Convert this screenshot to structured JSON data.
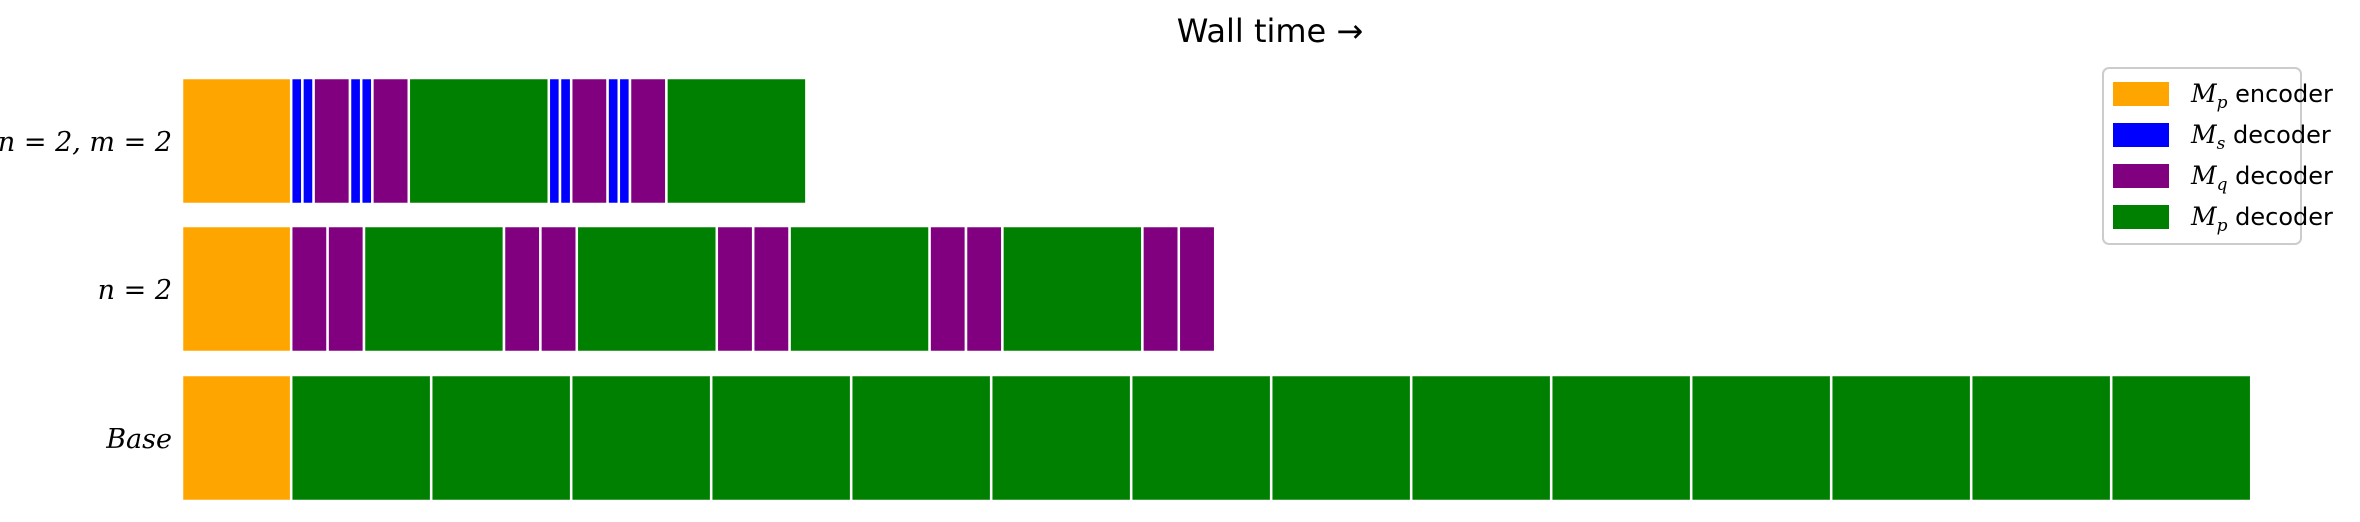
{
  "chart_data": {
    "type": "bar",
    "orientation": "horizontal-timeline",
    "title": "Wall time →",
    "xlabel": "",
    "ylabel": "",
    "x_unit": "blocks (one M_p decoder step = 1)",
    "xlim": [
      0,
      15.6
    ],
    "grid": false,
    "legend_position": "top-right",
    "colors": {
      "encoder": "#ffa500",
      "ms_decoder": "#0000ff",
      "mq_decoder": "#800080",
      "mp_decoder": "#008000"
    },
    "legend": [
      {
        "key": "encoder",
        "symbol": "M",
        "sub": "p",
        "text": "encoder"
      },
      {
        "key": "ms_decoder",
        "symbol": "M",
        "sub": "s",
        "text": "decoder"
      },
      {
        "key": "mq_decoder",
        "symbol": "M",
        "sub": "q",
        "text": "decoder"
      },
      {
        "key": "mp_decoder",
        "symbol": "M",
        "sub": "p",
        "text": "decoder"
      }
    ],
    "rows": [
      {
        "label": "n = 2, m = 2",
        "segments": [
          {
            "type": "encoder",
            "start": 0.0,
            "duration": 0.78
          },
          {
            "type": "ms_decoder",
            "start": 0.78,
            "duration": 0.08
          },
          {
            "type": "ms_decoder",
            "start": 0.86,
            "duration": 0.08
          },
          {
            "type": "mq_decoder",
            "start": 0.94,
            "duration": 0.26
          },
          {
            "type": "ms_decoder",
            "start": 1.2,
            "duration": 0.08
          },
          {
            "type": "ms_decoder",
            "start": 1.28,
            "duration": 0.08
          },
          {
            "type": "mq_decoder",
            "start": 1.36,
            "duration": 0.26
          },
          {
            "type": "mp_decoder",
            "start": 1.62,
            "duration": 1.0
          },
          {
            "type": "ms_decoder",
            "start": 2.62,
            "duration": 0.08
          },
          {
            "type": "ms_decoder",
            "start": 2.7,
            "duration": 0.08
          },
          {
            "type": "mq_decoder",
            "start": 2.78,
            "duration": 0.26
          },
          {
            "type": "ms_decoder",
            "start": 3.04,
            "duration": 0.08
          },
          {
            "type": "ms_decoder",
            "start": 3.12,
            "duration": 0.08
          },
          {
            "type": "mq_decoder",
            "start": 3.2,
            "duration": 0.26
          },
          {
            "type": "mp_decoder",
            "start": 3.46,
            "duration": 1.0
          }
        ]
      },
      {
        "label": "n = 2",
        "segments": [
          {
            "type": "encoder",
            "start": 0.0,
            "duration": 0.78
          },
          {
            "type": "mq_decoder",
            "start": 0.78,
            "duration": 0.26
          },
          {
            "type": "mq_decoder",
            "start": 1.04,
            "duration": 0.26
          },
          {
            "type": "mp_decoder",
            "start": 1.3,
            "duration": 1.0
          },
          {
            "type": "mq_decoder",
            "start": 2.3,
            "duration": 0.26
          },
          {
            "type": "mq_decoder",
            "start": 2.56,
            "duration": 0.26
          },
          {
            "type": "mp_decoder",
            "start": 2.82,
            "duration": 1.0
          },
          {
            "type": "mq_decoder",
            "start": 3.82,
            "duration": 0.26
          },
          {
            "type": "mq_decoder",
            "start": 4.08,
            "duration": 0.26
          },
          {
            "type": "mp_decoder",
            "start": 4.34,
            "duration": 1.0
          },
          {
            "type": "mq_decoder",
            "start": 5.34,
            "duration": 0.26
          },
          {
            "type": "mq_decoder",
            "start": 5.6,
            "duration": 0.26
          },
          {
            "type": "mp_decoder",
            "start": 5.86,
            "duration": 1.0
          },
          {
            "type": "mq_decoder",
            "start": 6.86,
            "duration": 0.26
          },
          {
            "type": "mq_decoder",
            "start": 7.12,
            "duration": 0.26
          }
        ]
      },
      {
        "label": "Base",
        "segments": [
          {
            "type": "encoder",
            "start": 0.0,
            "duration": 0.78
          },
          {
            "type": "mp_decoder",
            "start": 0.78,
            "duration": 1.0
          },
          {
            "type": "mp_decoder",
            "start": 1.78,
            "duration": 1.0
          },
          {
            "type": "mp_decoder",
            "start": 2.78,
            "duration": 1.0
          },
          {
            "type": "mp_decoder",
            "start": 3.78,
            "duration": 1.0
          },
          {
            "type": "mp_decoder",
            "start": 4.78,
            "duration": 1.0
          },
          {
            "type": "mp_decoder",
            "start": 5.78,
            "duration": 1.0
          },
          {
            "type": "mp_decoder",
            "start": 6.78,
            "duration": 1.0
          },
          {
            "type": "mp_decoder",
            "start": 7.78,
            "duration": 1.0
          },
          {
            "type": "mp_decoder",
            "start": 8.78,
            "duration": 1.0
          },
          {
            "type": "mp_decoder",
            "start": 9.78,
            "duration": 1.0
          },
          {
            "type": "mp_decoder",
            "start": 10.78,
            "duration": 1.0
          },
          {
            "type": "mp_decoder",
            "start": 11.78,
            "duration": 1.0
          },
          {
            "type": "mp_decoder",
            "start": 12.78,
            "duration": 1.0
          },
          {
            "type": "mp_decoder",
            "start": 13.78,
            "duration": 1.0
          }
        ]
      }
    ]
  }
}
